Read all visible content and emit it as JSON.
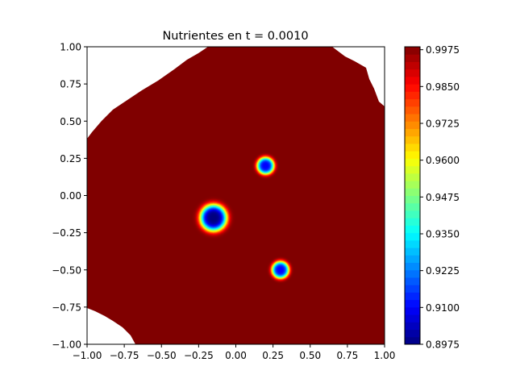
{
  "chart_data": {
    "type": "heatmap",
    "title": "Nutrientes en t = 0.0010",
    "xlabel": "",
    "ylabel": "",
    "xlim": [
      -1.0,
      1.0
    ],
    "ylim": [
      -1.0,
      1.0
    ],
    "x_ticks": [
      "−1.00",
      "−0.75",
      "−0.50",
      "−0.25",
      "0.00",
      "0.25",
      "0.50",
      "0.75",
      "1.00"
    ],
    "y_ticks": [
      "−1.00",
      "−0.75",
      "−0.50",
      "−0.25",
      "0.00",
      "0.25",
      "0.50",
      "0.75",
      "1.00"
    ],
    "colormap": "jet",
    "background_value": 0.9985,
    "colorbar": {
      "min": 0.8975,
      "max": 0.9985,
      "ticks": [
        "0.8975",
        "0.9100",
        "0.9225",
        "0.9350",
        "0.9475",
        "0.9600",
        "0.9725",
        "0.9850",
        "0.9975"
      ]
    },
    "depletion_spots": [
      {
        "center": [
          -0.15,
          -0.15
        ],
        "radius": 0.17,
        "min_value": 0.8975
      },
      {
        "center": [
          0.2,
          0.2
        ],
        "radius": 0.11,
        "min_value": 0.91
      },
      {
        "center": [
          0.3,
          -0.5
        ],
        "radius": 0.11,
        "min_value": 0.91
      }
    ],
    "grid": false
  }
}
